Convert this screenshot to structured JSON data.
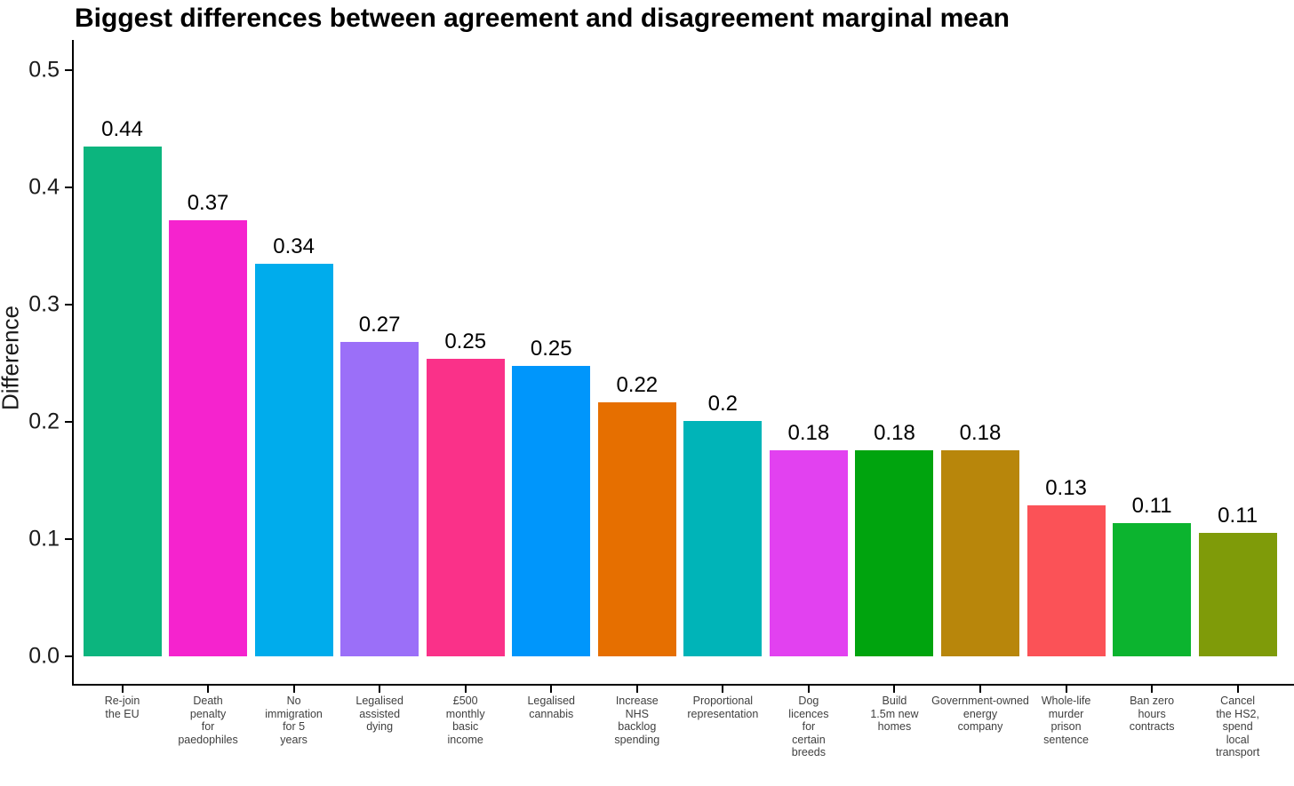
{
  "chart_data": {
    "type": "bar",
    "title": "Biggest differences between agreement and disagreement marginal mean",
    "xlabel": "",
    "ylabel": "Difference",
    "ylim": [
      0,
      0.5
    ],
    "ytick_labels": [
      "0.0",
      "0.1",
      "0.2",
      "0.3",
      "0.4",
      "0.5"
    ],
    "ytick_values": [
      0.0,
      0.1,
      0.2,
      0.3,
      0.4,
      0.5
    ],
    "grid": false,
    "legend": "none",
    "categories": [
      "Re-join the EU",
      "Death penalty for paedophiles",
      "No immigration for 5 years",
      "Legalised assisted dying",
      "£500 monthly basic income",
      "Legalised cannabis",
      "Increase NHS backlog spending",
      "Proportional representation",
      "Dog licences for certain breeds",
      "Build 1.5m new homes",
      "Government-owned energy company",
      "Whole-life murder prison sentence",
      "Ban zero hours contracts",
      "Cancel the HS2, spend local transport"
    ],
    "category_label_lines": [
      [
        "Re-join",
        "the EU"
      ],
      [
        "Death",
        "penalty",
        "for",
        "paedophiles"
      ],
      [
        "No",
        "immigration",
        "for 5",
        "years"
      ],
      [
        "Legalised",
        "assisted",
        "dying"
      ],
      [
        "£500",
        "monthly",
        "basic",
        "income"
      ],
      [
        "Legalised",
        "cannabis"
      ],
      [
        "Increase",
        "NHS",
        "backlog",
        "spending"
      ],
      [
        "Proportional",
        "representation"
      ],
      [
        "Dog",
        "licences",
        "for",
        "certain",
        "breeds"
      ],
      [
        "Build",
        "1.5m new",
        "homes"
      ],
      [
        "Government-owned",
        "energy",
        "company"
      ],
      [
        "Whole-life",
        "murder",
        "prison",
        "sentence"
      ],
      [
        "Ban zero",
        "hours",
        "contracts"
      ],
      [
        "Cancel",
        "the HS2,",
        "spend",
        "local",
        "transport"
      ]
    ],
    "values": [
      0.44,
      0.37,
      0.34,
      0.27,
      0.25,
      0.25,
      0.22,
      0.2,
      0.18,
      0.18,
      0.18,
      0.13,
      0.11,
      0.11
    ],
    "value_labels": [
      "0.44",
      "0.37",
      "0.34",
      "0.27",
      "0.25",
      "0.25",
      "0.22",
      "0.2",
      "0.18",
      "0.18",
      "0.18",
      "0.13",
      "0.11",
      "0.11"
    ],
    "precise_values": [
      0.435,
      0.372,
      0.335,
      0.268,
      0.254,
      0.248,
      0.217,
      0.201,
      0.176,
      0.176,
      0.176,
      0.129,
      0.114,
      0.105
    ],
    "bar_colors": [
      "#0CB57E",
      "#F523CE",
      "#00ACEC",
      "#9B6FF8",
      "#FA3189",
      "#0096FB",
      "#E66F00",
      "#00B4B8",
      "#E241F0",
      "#00A40E",
      "#B8860B",
      "#FB5257",
      "#0CB42F",
      "#7F9B09"
    ],
    "axis_color": "#000000",
    "text_color": "#1a1a1a",
    "x_label_color": "#404040"
  }
}
